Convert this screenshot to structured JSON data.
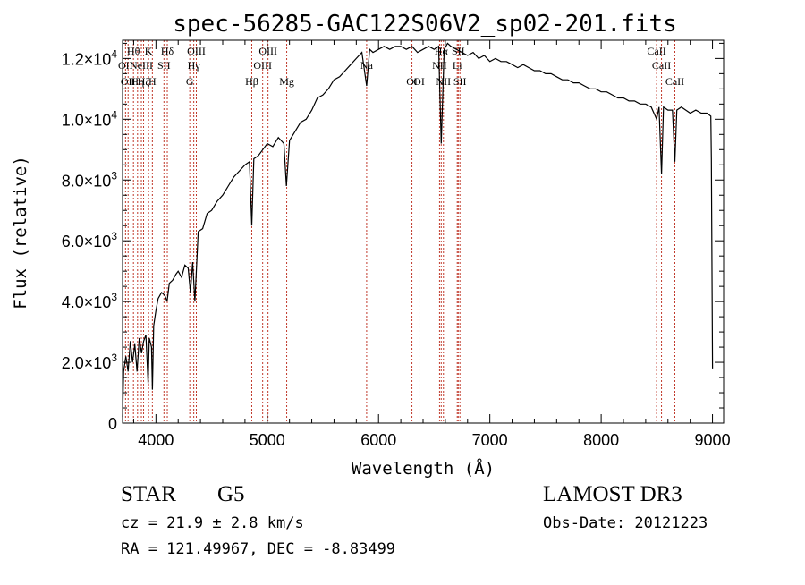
{
  "chart_data": {
    "type": "line",
    "title": "spec-56285-GAC122S06V2_sp02-201.fits",
    "xlabel": "Wavelength (Å)",
    "ylabel": "Flux (relative)",
    "xlim": [
      3700,
      9100
    ],
    "ylim": [
      0,
      12600
    ],
    "x_ticks": [
      {
        "value": 4000,
        "label": "4000"
      },
      {
        "value": 5000,
        "label": "5000"
      },
      {
        "value": 6000,
        "label": "6000"
      },
      {
        "value": 7000,
        "label": "7000"
      },
      {
        "value": 8000,
        "label": "8000"
      },
      {
        "value": 9000,
        "label": "9000"
      }
    ],
    "y_ticks": [
      {
        "value": 0,
        "mantissa": "0",
        "exponent": ""
      },
      {
        "value": 2000,
        "mantissa": "2.0×10",
        "exponent": "3"
      },
      {
        "value": 4000,
        "mantissa": "4.0×10",
        "exponent": "3"
      },
      {
        "value": 6000,
        "mantissa": "6.0×10",
        "exponent": "3"
      },
      {
        "value": 8000,
        "mantissa": "8.0×10",
        "exponent": "3"
      },
      {
        "value": 10000,
        "mantissa": "1.0×10",
        "exponent": "4"
      },
      {
        "value": 12000,
        "mantissa": "1.2×10",
        "exponent": "4"
      }
    ],
    "series": [
      {
        "name": "flux",
        "points": [
          [
            3700,
            200
          ],
          [
            3710,
            1700
          ],
          [
            3730,
            2200
          ],
          [
            3750,
            1700
          ],
          [
            3770,
            2700
          ],
          [
            3790,
            2000
          ],
          [
            3810,
            2600
          ],
          [
            3830,
            1700
          ],
          [
            3850,
            2800
          ],
          [
            3870,
            2300
          ],
          [
            3890,
            2700
          ],
          [
            3910,
            2900
          ],
          [
            3930,
            1300
          ],
          [
            3940,
            2800
          ],
          [
            3960,
            2500
          ],
          [
            3968,
            1100
          ],
          [
            3980,
            3200
          ],
          [
            4000,
            3700
          ],
          [
            4020,
            4100
          ],
          [
            4050,
            4300
          ],
          [
            4080,
            4200
          ],
          [
            4100,
            4000
          ],
          [
            4120,
            4600
          ],
          [
            4150,
            4700
          ],
          [
            4180,
            4900
          ],
          [
            4200,
            5000
          ],
          [
            4230,
            4800
          ],
          [
            4260,
            5200
          ],
          [
            4290,
            5100
          ],
          [
            4310,
            4300
          ],
          [
            4330,
            5300
          ],
          [
            4350,
            4000
          ],
          [
            4380,
            6300
          ],
          [
            4420,
            6400
          ],
          [
            4460,
            6900
          ],
          [
            4500,
            7000
          ],
          [
            4550,
            7300
          ],
          [
            4600,
            7500
          ],
          [
            4650,
            7800
          ],
          [
            4700,
            8100
          ],
          [
            4750,
            8300
          ],
          [
            4800,
            8500
          ],
          [
            4840,
            8600
          ],
          [
            4861,
            6500
          ],
          [
            4880,
            8700
          ],
          [
            4920,
            8800
          ],
          [
            4960,
            9000
          ],
          [
            5000,
            9200
          ],
          [
            5050,
            9100
          ],
          [
            5100,
            9400
          ],
          [
            5150,
            9200
          ],
          [
            5172,
            7800
          ],
          [
            5200,
            9300
          ],
          [
            5250,
            9600
          ],
          [
            5300,
            9900
          ],
          [
            5350,
            10000
          ],
          [
            5400,
            10300
          ],
          [
            5450,
            10700
          ],
          [
            5500,
            10800
          ],
          [
            5550,
            11000
          ],
          [
            5600,
            11300
          ],
          [
            5650,
            11400
          ],
          [
            5700,
            11600
          ],
          [
            5750,
            11800
          ],
          [
            5800,
            12000
          ],
          [
            5850,
            12200
          ],
          [
            5893,
            11100
          ],
          [
            5920,
            12300
          ],
          [
            5950,
            12200
          ],
          [
            6000,
            12300
          ],
          [
            6050,
            12400
          ],
          [
            6100,
            12300
          ],
          [
            6150,
            12400
          ],
          [
            6200,
            12400
          ],
          [
            6250,
            12300
          ],
          [
            6300,
            12400
          ],
          [
            6350,
            12200
          ],
          [
            6400,
            12300
          ],
          [
            6450,
            12400
          ],
          [
            6500,
            12300
          ],
          [
            6540,
            12400
          ],
          [
            6563,
            9200
          ],
          [
            6590,
            12300
          ],
          [
            6620,
            12500
          ],
          [
            6650,
            12400
          ],
          [
            6700,
            12300
          ],
          [
            6750,
            12200
          ],
          [
            6800,
            12100
          ],
          [
            6850,
            12200
          ],
          [
            6900,
            12000
          ],
          [
            6950,
            12100
          ],
          [
            7000,
            11900
          ],
          [
            7050,
            12000
          ],
          [
            7100,
            11900
          ],
          [
            7150,
            11900
          ],
          [
            7200,
            11800
          ],
          [
            7250,
            11700
          ],
          [
            7300,
            11800
          ],
          [
            7350,
            11700
          ],
          [
            7400,
            11600
          ],
          [
            7450,
            11600
          ],
          [
            7500,
            11500
          ],
          [
            7550,
            11500
          ],
          [
            7600,
            11400
          ],
          [
            7650,
            11300
          ],
          [
            7700,
            11300
          ],
          [
            7750,
            11200
          ],
          [
            7800,
            11200
          ],
          [
            7850,
            11100
          ],
          [
            7900,
            11000
          ],
          [
            7950,
            11000
          ],
          [
            8000,
            10900
          ],
          [
            8050,
            10900
          ],
          [
            8100,
            10800
          ],
          [
            8150,
            10700
          ],
          [
            8200,
            10700
          ],
          [
            8250,
            10600
          ],
          [
            8300,
            10600
          ],
          [
            8350,
            10500
          ],
          [
            8400,
            10500
          ],
          [
            8450,
            10400
          ],
          [
            8498,
            10000
          ],
          [
            8520,
            10400
          ],
          [
            8542,
            8200
          ],
          [
            8560,
            10400
          ],
          [
            8600,
            10300
          ],
          [
            8640,
            10300
          ],
          [
            8662,
            8600
          ],
          [
            8680,
            10300
          ],
          [
            8720,
            10400
          ],
          [
            8760,
            10300
          ],
          [
            8800,
            10200
          ],
          [
            8850,
            10300
          ],
          [
            8900,
            10200
          ],
          [
            8950,
            10200
          ],
          [
            8985,
            10100
          ],
          [
            8990,
            8700
          ],
          [
            9000,
            1800
          ]
        ]
      }
    ],
    "spectral_lines": [
      {
        "wavelength": 3727,
        "label": "OII",
        "row": 2
      },
      {
        "wavelength": 3750,
        "label": "OII",
        "row": 3
      },
      {
        "wavelength": 3798,
        "label": "Hθ",
        "row": 1
      },
      {
        "wavelength": 3835,
        "label": "Hη",
        "row": 3
      },
      {
        "wavelength": 3869,
        "label": "NeIII",
        "row": 2
      },
      {
        "wavelength": 3889,
        "label": "Hζ",
        "row": 3
      },
      {
        "wavelength": 3934,
        "label": "K",
        "row": 1
      },
      {
        "wavelength": 3968,
        "label": "H",
        "row": 3
      },
      {
        "wavelength": 4072,
        "label": "SII",
        "row": 2
      },
      {
        "wavelength": 4102,
        "label": "Hδ",
        "row": 1
      },
      {
        "wavelength": 4304,
        "label": "G",
        "row": 3
      },
      {
        "wavelength": 4340,
        "label": "Hγ",
        "row": 2
      },
      {
        "wavelength": 4363,
        "label": "OIII",
        "row": 1
      },
      {
        "wavelength": 4861,
        "label": "Hβ",
        "row": 3
      },
      {
        "wavelength": 4959,
        "label": "OIII",
        "row": 2
      },
      {
        "wavelength": 5007,
        "label": "OIII",
        "row": 1
      },
      {
        "wavelength": 5175,
        "label": "Mg",
        "row": 3
      },
      {
        "wavelength": 5893,
        "label": "Na",
        "row": 2
      },
      {
        "wavelength": 6300,
        "label": "OI",
        "row": 3
      },
      {
        "wavelength": 6364,
        "label": "OI",
        "row": 3
      },
      {
        "wavelength": 6548,
        "label": "NII",
        "row": 2
      },
      {
        "wavelength": 6563,
        "label": "Hα",
        "row": 1
      },
      {
        "wavelength": 6583,
        "label": "NII",
        "row": 3
      },
      {
        "wavelength": 6707,
        "label": "Li",
        "row": 2
      },
      {
        "wavelength": 6716,
        "label": "SII",
        "row": 1
      },
      {
        "wavelength": 6731,
        "label": "SII",
        "row": 3
      },
      {
        "wavelength": 8498,
        "label": "CaII",
        "row": 1
      },
      {
        "wavelength": 8542,
        "label": "CaII",
        "row": 2
      },
      {
        "wavelength": 8662,
        "label": "CaII",
        "row": 3
      }
    ]
  },
  "footer": {
    "object_class": "STAR",
    "subclass": "G5",
    "survey": "LAMOST DR3",
    "redshift": "cz = 21.9 ± 2.8 km/s",
    "obs_date": "Obs-Date: 20121223",
    "coords": "RA = 121.49967, DEC =  -8.83499"
  },
  "colors": {
    "line_marker": "#c0392b",
    "spectrum": "#000000",
    "axes": "#000000"
  }
}
